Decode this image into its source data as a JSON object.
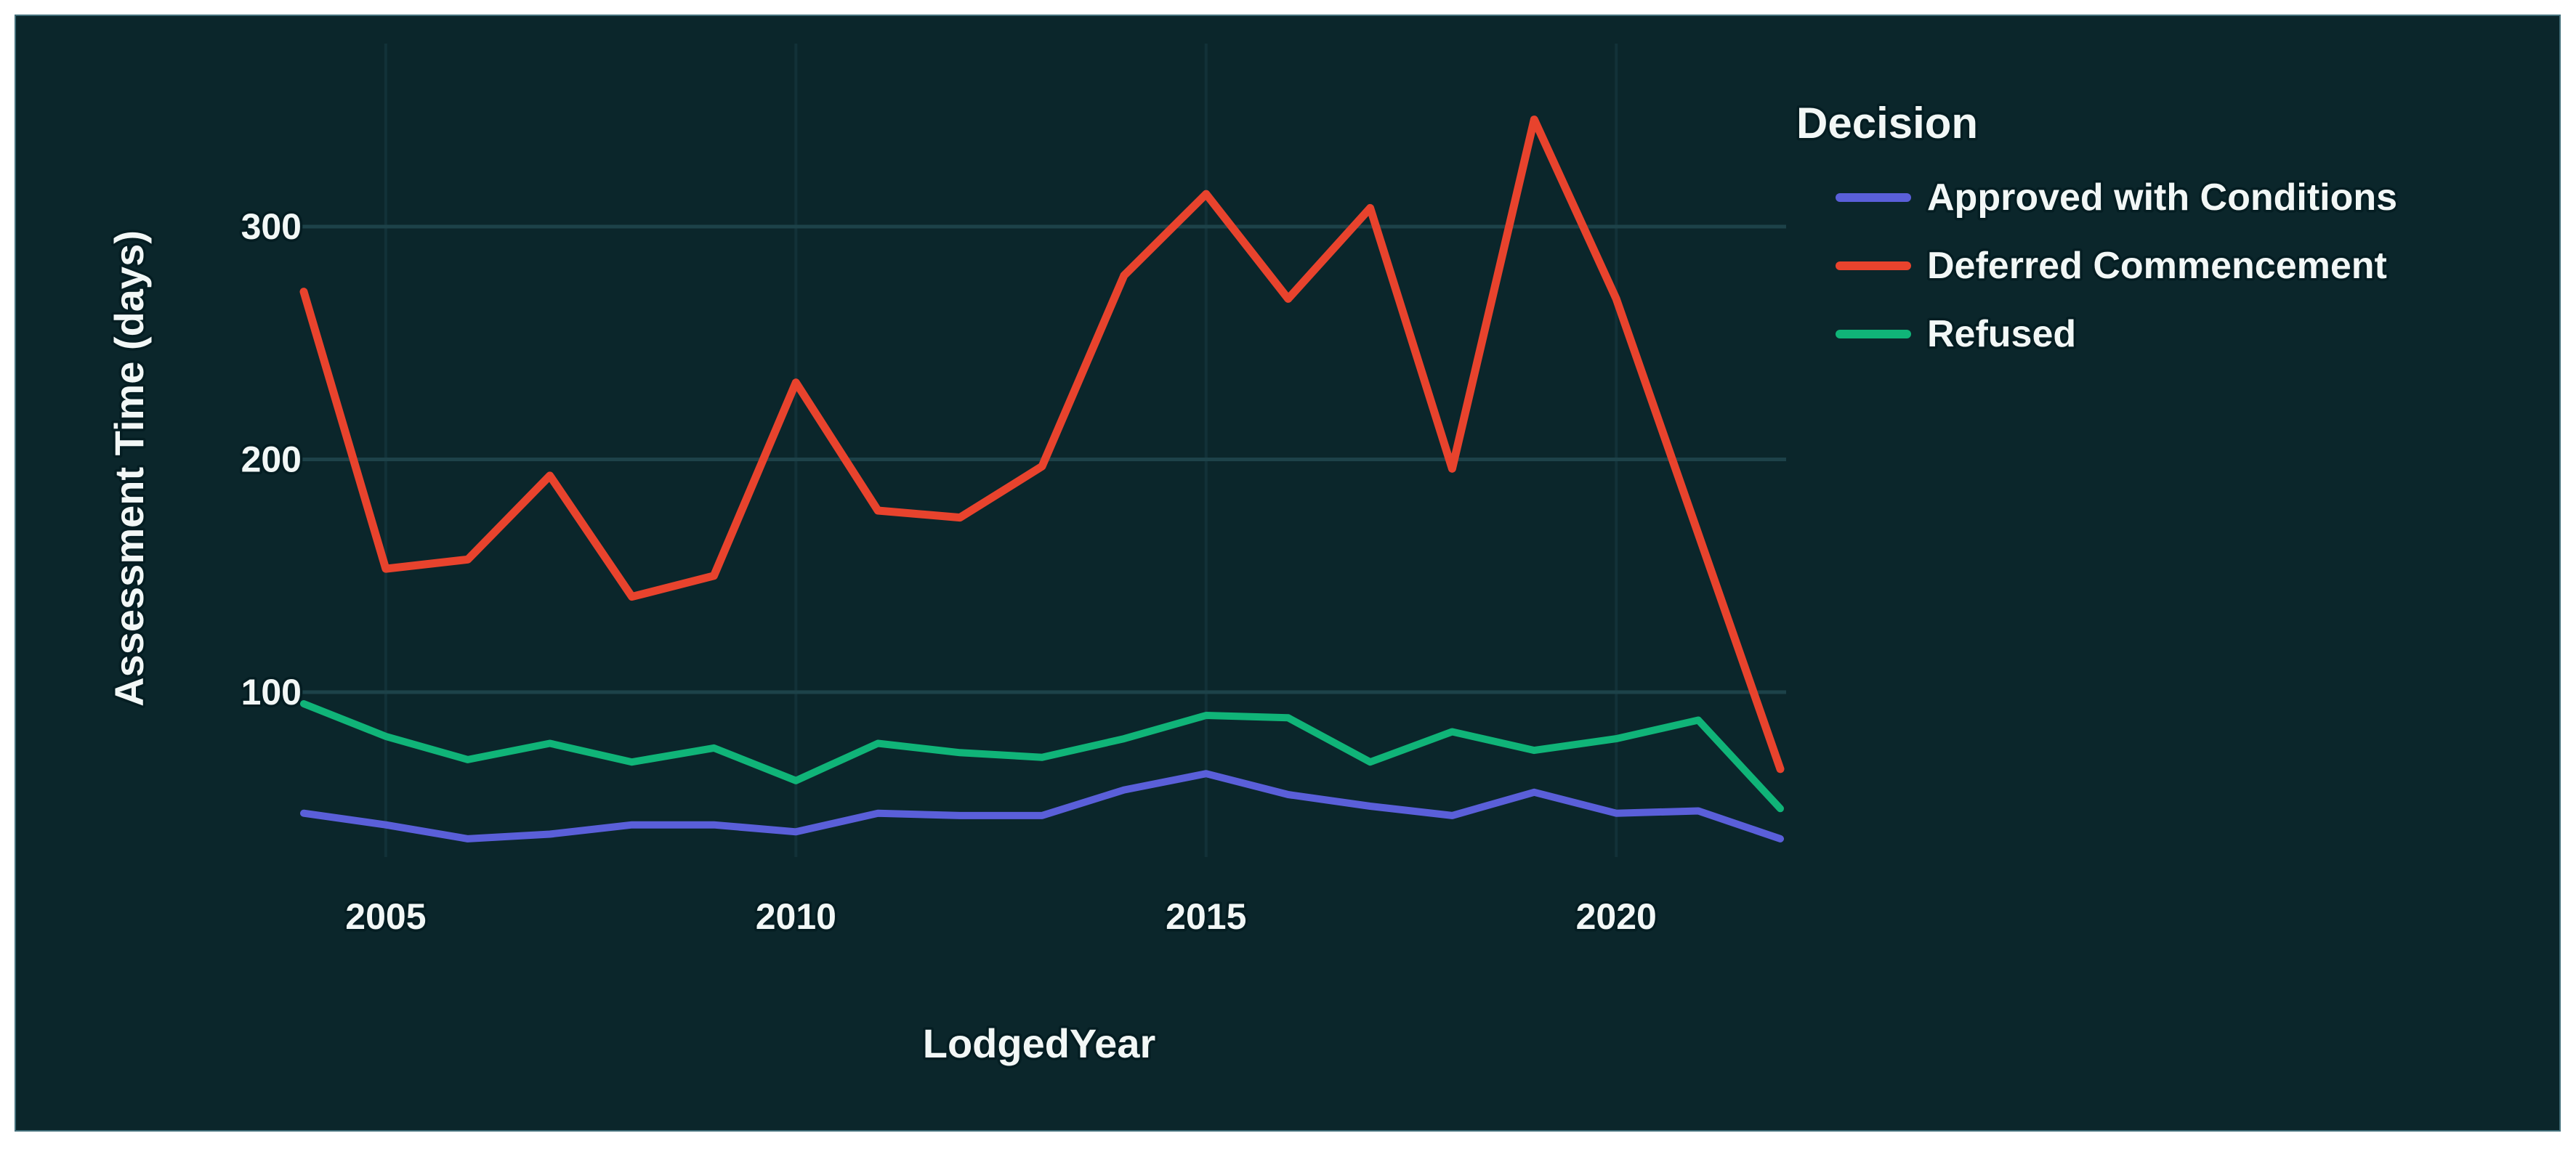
{
  "chart_data": {
    "type": "line",
    "title": "",
    "xlabel": "LodgedYear",
    "ylabel": "Assessment Time (days)",
    "legend_title": "Decision",
    "legend_position": "outside-top-right",
    "grid": true,
    "x": [
      2004,
      2005,
      2006,
      2007,
      2008,
      2009,
      2010,
      2011,
      2012,
      2013,
      2014,
      2015,
      2016,
      2017,
      2018,
      2019,
      2020,
      2021,
      2022
    ],
    "x_ticks": [
      2005,
      2010,
      2015,
      2020
    ],
    "y_ticks": [
      100,
      200,
      300
    ],
    "xlim": [
      2004,
      2022
    ],
    "ylim": [
      30,
      360
    ],
    "series": [
      {
        "name": "Approved with Conditions",
        "color": "#5a5fd9",
        "values": [
          48,
          43,
          37,
          39,
          43,
          43,
          40,
          48,
          47,
          47,
          58,
          65,
          56,
          51,
          47,
          57,
          48,
          49,
          37
        ]
      },
      {
        "name": "Deferred Commencement",
        "color": "#e8432d",
        "values": [
          272,
          153,
          157,
          193,
          141,
          150,
          233,
          178,
          175,
          197,
          279,
          314,
          269,
          308,
          196,
          346,
          269,
          168,
          67
        ]
      },
      {
        "name": "Refused",
        "color": "#10b478",
        "values": [
          95,
          81,
          71,
          78,
          70,
          76,
          62,
          78,
          74,
          72,
          80,
          90,
          89,
          70,
          83,
          75,
          80,
          88,
          50
        ]
      }
    ]
  },
  "colors": {
    "background": "#0b262b",
    "page_border": "#44707b",
    "gridline": "#1d4249",
    "text": "#f2f7f6"
  }
}
